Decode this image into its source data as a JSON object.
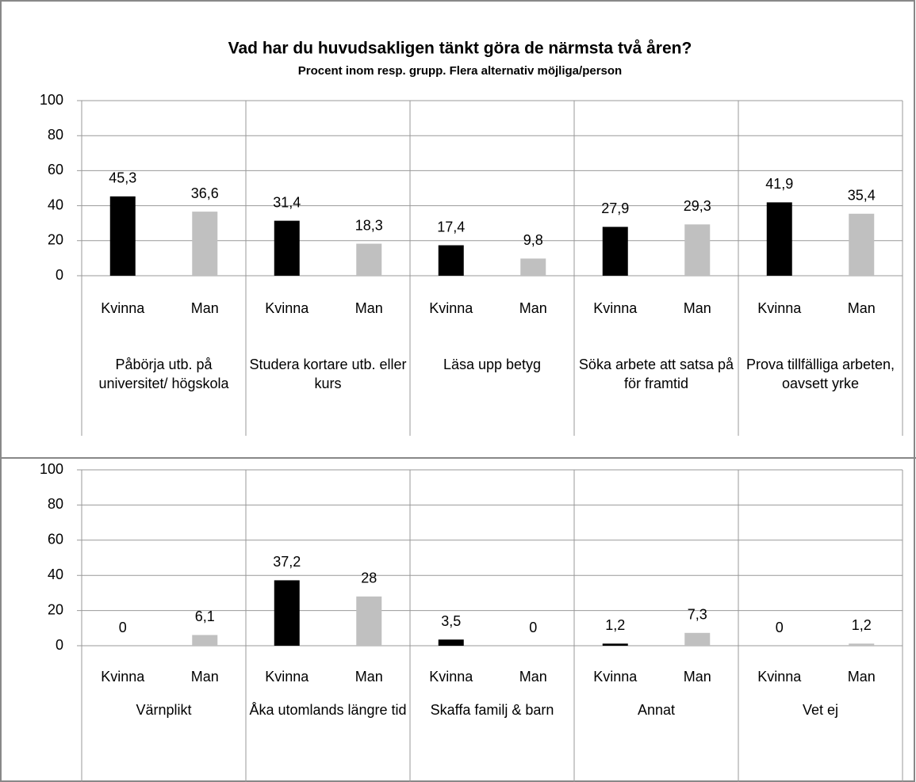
{
  "chart_data": [
    {
      "type": "bar",
      "title": "Vad har du huvudsakligen tänkt göra de närmsta två åren?",
      "subtitle": "Procent inom resp. grupp. Flera alternativ möjliga/person",
      "categories": [
        "Påbörja utb. på universitet/ högskola",
        "Studera kortare utb. eller kurs",
        "Läsa upp betyg",
        "Söka arbete att satsa på för framtid",
        "Prova tillfälliga arbeten, oavsett yrke"
      ],
      "series": [
        {
          "name": "Kvinna",
          "color": "#000000",
          "values": [
            45.3,
            31.4,
            17.4,
            27.9,
            41.9
          ],
          "value_labels": [
            "45,3",
            "31,4",
            "17,4",
            "27,9",
            "41,9"
          ]
        },
        {
          "name": "Man",
          "color": "#c0c0c0",
          "values": [
            36.6,
            18.3,
            9.8,
            29.3,
            35.4
          ],
          "value_labels": [
            "36,6",
            "18,3",
            "9,8",
            "29,3",
            "35,4"
          ]
        }
      ],
      "ylim": [
        0,
        100
      ],
      "yticks": [
        0,
        20,
        40,
        60,
        80,
        100
      ],
      "grid": true
    },
    {
      "type": "bar",
      "categories": [
        "Värnplikt",
        "Åka utomlands längre tid",
        "Skaffa familj & barn",
        "Annat",
        "Vet ej"
      ],
      "series": [
        {
          "name": "Kvinna",
          "color": "#000000",
          "values": [
            0,
            37.2,
            3.5,
            1.2,
            0
          ],
          "value_labels": [
            "0",
            "37,2",
            "3,5",
            "1,2",
            "0"
          ]
        },
        {
          "name": "Man",
          "color": "#c0c0c0",
          "values": [
            6.1,
            28,
            0,
            7.3,
            1.2
          ],
          "value_labels": [
            "6,1",
            "28",
            "0",
            "7,3",
            "1,2"
          ]
        }
      ],
      "ylim": [
        0,
        100
      ],
      "yticks": [
        0,
        20,
        40,
        60,
        80,
        100
      ],
      "grid": true
    }
  ]
}
